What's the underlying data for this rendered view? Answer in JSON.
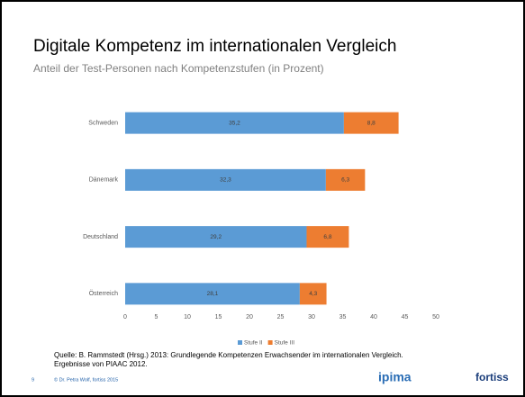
{
  "chart_data": {
    "type": "bar",
    "orientation": "horizontal",
    "stacked": true,
    "title": "Digitale Kompetenz im internationalen Vergleich",
    "subtitle": "Anteil der Test-Personen nach Kompetenzstufen (in Prozent)",
    "categories": [
      "Schweden",
      "Dänemark",
      "Deutschland",
      "Österreich"
    ],
    "series": [
      {
        "name": "Stufe II",
        "color": "#5b9bd5",
        "values": [
          35.2,
          32.3,
          29.2,
          28.1
        ],
        "value_labels": [
          "35,2",
          "32,3",
          "29,2",
          "28,1"
        ]
      },
      {
        "name": "Stufe III",
        "color": "#ed7d31",
        "values": [
          8.8,
          6.3,
          6.8,
          4.3
        ],
        "value_labels": [
          "8,8",
          "6,3",
          "6,8",
          "4,3"
        ]
      }
    ],
    "xlim": [
      0,
      50
    ],
    "xticks": [
      0,
      5,
      10,
      15,
      20,
      25,
      30,
      35,
      40,
      45,
      50
    ],
    "legend": "bottom"
  },
  "source": [
    "Quelle: B. Rammstedt (Hrsg.) 2013: Grundlegende Kompetenzen Erwachsender im internationalen Vergleich.",
    "Ergebnisse von PIAAC 2012."
  ],
  "footer": {
    "page": "9",
    "copyright": "© Dr. Petra Wolf, fortiss 2015",
    "logo_left": "ipima",
    "logo_right": "fortiss"
  }
}
